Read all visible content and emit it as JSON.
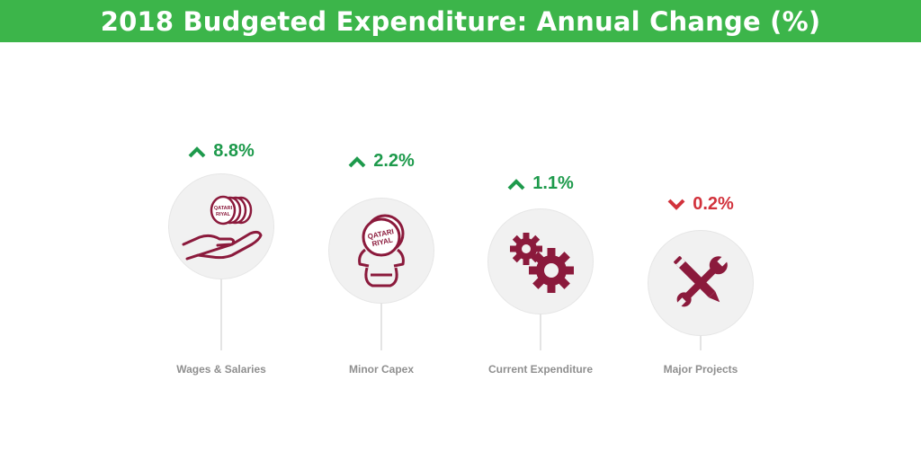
{
  "title": "2018 Budgeted Expenditure: Annual Change (%)",
  "colors": {
    "header_bg": "#3cb54a",
    "increase": "#1e9a4c",
    "decrease": "#d2323c",
    "icon": "#8b1a3c",
    "label": "#8f8f8f"
  },
  "items": [
    {
      "label": "Wages & Salaries",
      "value": "8.8%",
      "direction": "up",
      "icon": "hand-coin-stack-icon",
      "coin_text_1": "QATARI",
      "coin_text_2": "RIYAL"
    },
    {
      "label": "Minor Capex",
      "value": "2.2%",
      "direction": "up",
      "icon": "coin-bag-icon",
      "coin_text_1": "QATARI",
      "coin_text_2": "RIYAL"
    },
    {
      "label": "Current Expenditure",
      "value": "1.1%",
      "direction": "up",
      "icon": "gears-icon"
    },
    {
      "label": "Major Projects",
      "value": "0.2%",
      "direction": "down",
      "icon": "wrench-pencil-icon"
    }
  ],
  "chart_data": {
    "type": "bar",
    "title": "2018 Budgeted Expenditure: Annual Change (%)",
    "categories": [
      "Wages & Salaries",
      "Minor Capex",
      "Current Expenditure",
      "Major Projects"
    ],
    "values": [
      8.8,
      2.2,
      1.1,
      -0.2
    ],
    "xlabel": "",
    "ylabel": "",
    "legend": "none",
    "grid": false
  }
}
